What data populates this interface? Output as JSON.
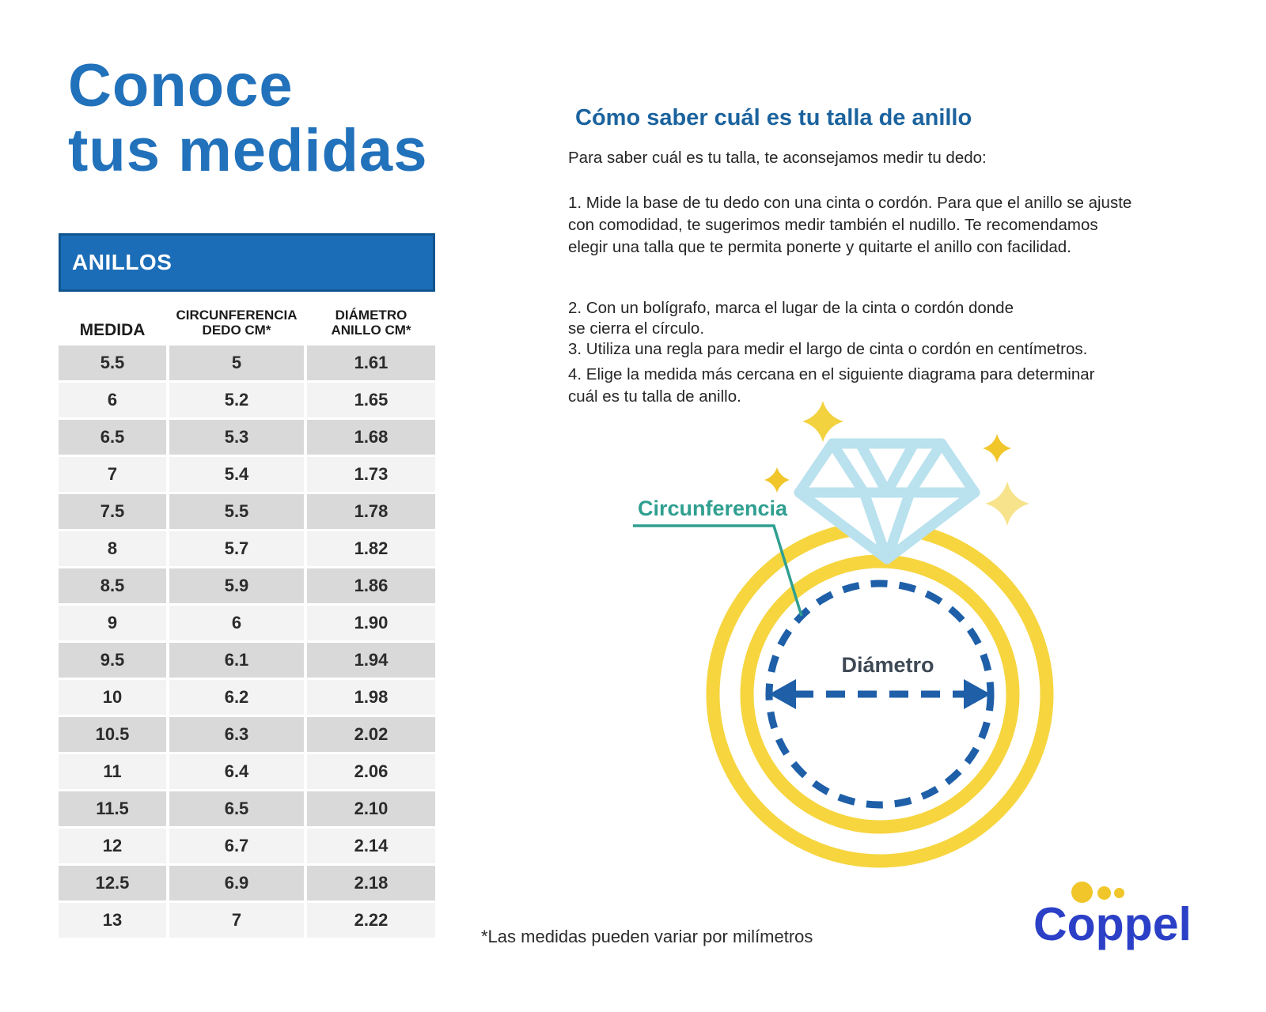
{
  "title": {
    "line1": "Conoce",
    "line2": "tus medidas"
  },
  "table": {
    "header": "ANILLOS",
    "columns": [
      {
        "l1": "MEDIDA",
        "l2": ""
      },
      {
        "l1": "CIRCUNFERENCIA",
        "l2": "DEDO CM*"
      },
      {
        "l1": "DIÁMETRO",
        "l2": "ANILLO CM*"
      }
    ],
    "rows": [
      [
        "5.5",
        "5",
        "1.61"
      ],
      [
        "6",
        "5.2",
        "1.65"
      ],
      [
        "6.5",
        "5.3",
        "1.68"
      ],
      [
        "7",
        "5.4",
        "1.73"
      ],
      [
        "7.5",
        "5.5",
        "1.78"
      ],
      [
        "8",
        "5.7",
        "1.82"
      ],
      [
        "8.5",
        "5.9",
        "1.86"
      ],
      [
        "9",
        "6",
        "1.90"
      ],
      [
        "9.5",
        "6.1",
        "1.94"
      ],
      [
        "10",
        "6.2",
        "1.98"
      ],
      [
        "10.5",
        "6.3",
        "2.02"
      ],
      [
        "11",
        "6.4",
        "2.06"
      ],
      [
        "11.5",
        "6.5",
        "2.10"
      ],
      [
        "12",
        "6.7",
        "2.14"
      ],
      [
        "12.5",
        "6.9",
        "2.18"
      ],
      [
        "13",
        "7",
        "2.22"
      ]
    ]
  },
  "instructions": {
    "heading": "Cómo saber cuál es tu talla de anillo",
    "intro": "Para saber cuál es tu talla, te aconsejamos medir tu dedo:",
    "step1": "1. Mide la base de tu dedo con una cinta o cordón. Para que el anillo se ajuste\ncon comodidad, te sugerimos medir también el nudillo. Te recomendamos\nelegir una talla que te permita ponerte y quitarte el anillo con facilidad.",
    "step2": "2. Con un bolígrafo, marca el lugar de la cinta o cordón donde\nse cierra el círculo.",
    "step3": "3. Utiliza una regla para medir el largo de cinta o cordón en centímetros.",
    "step4": "4. Elige la medida más cercana en el siguiente diagrama para determinar\ncuál es tu talla de anillo."
  },
  "diagram": {
    "circumference_label": "Circunferencia",
    "diameter_label": "Diámetro"
  },
  "footnote": "*Las medidas pueden variar por milímetros",
  "logo": {
    "text": "Coppel"
  },
  "colors": {
    "title_blue": "#2171bb",
    "heading_blue": "#1b639e",
    "table_header_bg": "#1b6db7",
    "row_dark": "#d9d9d9",
    "row_light": "#f3f3f3",
    "ring_gold": "#f6d53f",
    "diamond_blue": "#b9e1ee",
    "dash_blue": "#1e5fa8",
    "circumference_teal": "#2f9f90",
    "diameter_text": "#3e4955",
    "sparkle_gold": "#f0c62a",
    "sparkle_pale": "#f6e38b",
    "logo_blue": "#2b40c7",
    "logo_dot_yellow": "#f0c62a"
  }
}
